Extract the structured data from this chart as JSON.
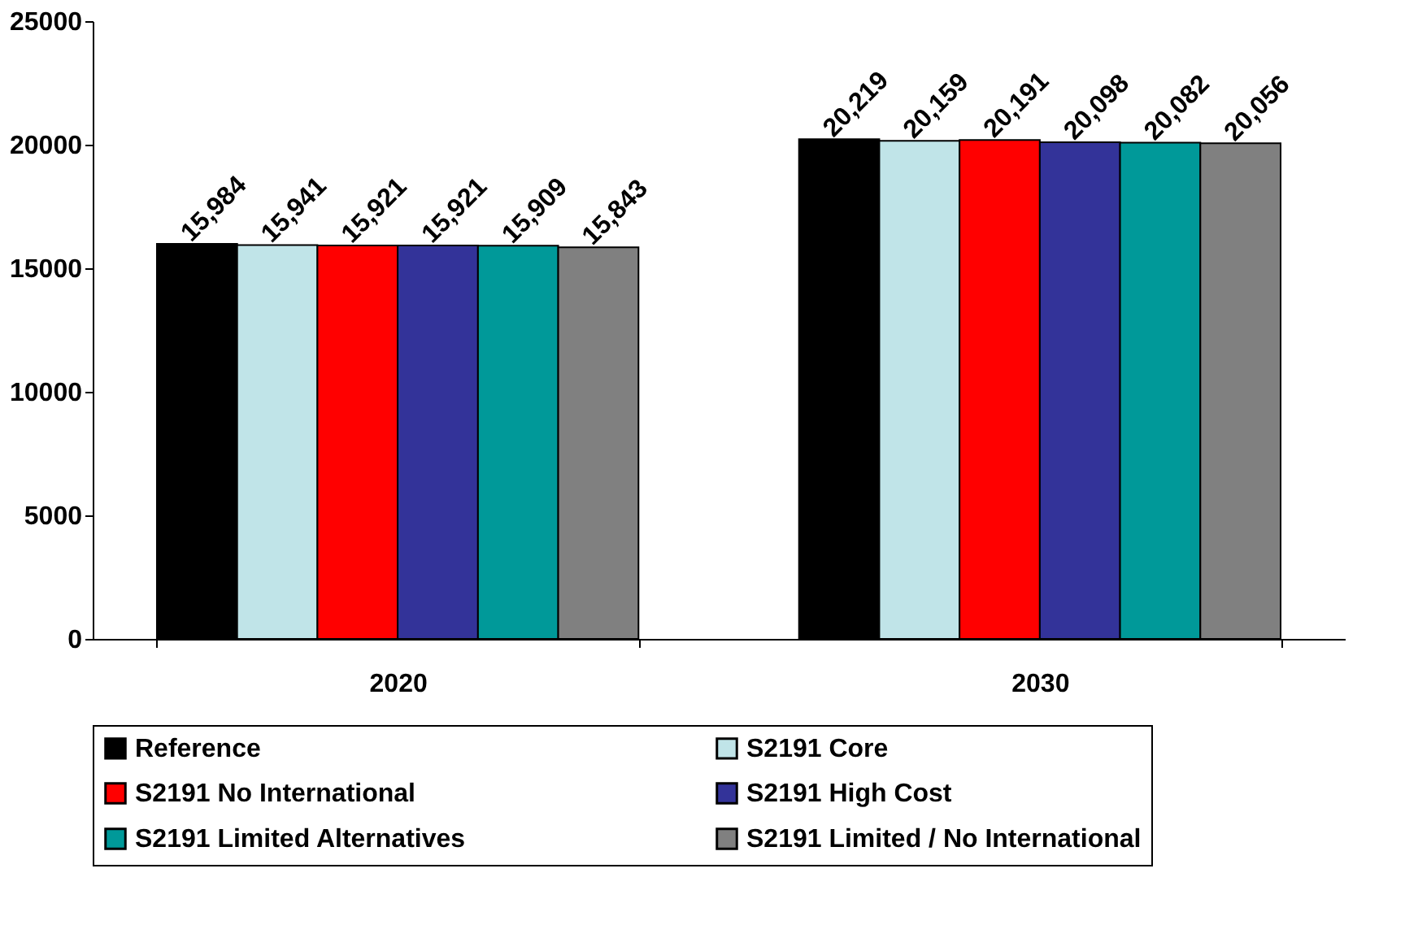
{
  "chart_data": {
    "type": "bar",
    "categories": [
      "2020",
      "2030"
    ],
    "series": [
      {
        "name": "Reference",
        "color": "#000000",
        "values": [
          15984,
          20219
        ],
        "value_labels": [
          "15,984",
          "20,219"
        ]
      },
      {
        "name": "S2191 Core",
        "color": "#c0e4e8",
        "values": [
          15941,
          20159
        ],
        "value_labels": [
          "15,941",
          "20,159"
        ]
      },
      {
        "name": "S2191 No International",
        "color": "#ff0000",
        "values": [
          15921,
          20191
        ],
        "value_labels": [
          "15,921",
          "20,191"
        ]
      },
      {
        "name": "S2191 High Cost",
        "color": "#333399",
        "values": [
          15921,
          20098
        ],
        "value_labels": [
          "15,921",
          "20,098"
        ]
      },
      {
        "name": "S2191 Limited Alternatives",
        "color": "#009999",
        "values": [
          15909,
          20082
        ],
        "value_labels": [
          "15,909",
          "20,082"
        ]
      },
      {
        "name": "S2191 Limited / No International",
        "color": "#808080",
        "values": [
          15843,
          20056
        ],
        "value_labels": [
          "15,843",
          "20,056"
        ]
      }
    ],
    "ylim": [
      0,
      25000
    ],
    "yticks": [
      0,
      5000,
      10000,
      15000,
      20000,
      25000
    ],
    "grid": false,
    "legend": "bottom"
  }
}
